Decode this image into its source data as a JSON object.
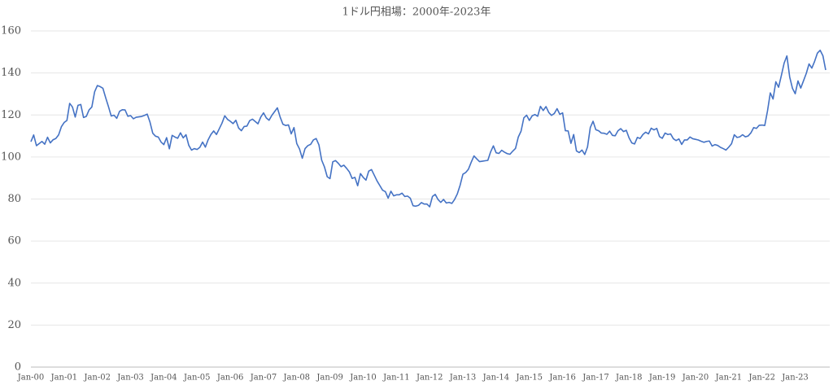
{
  "chart_data": {
    "type": "line",
    "title": "1ドル円相場：2000年-2023年",
    "color": "#4472c4",
    "grid": true,
    "ylim": [
      0,
      160
    ],
    "yticks": [
      0,
      20,
      40,
      60,
      80,
      100,
      120,
      140,
      160
    ],
    "categories": [
      "Jan-00",
      null,
      null,
      null,
      null,
      null,
      null,
      null,
      null,
      null,
      null,
      null,
      "Jan-01",
      null,
      null,
      null,
      null,
      null,
      null,
      null,
      null,
      null,
      null,
      null,
      "Jan-02",
      null,
      null,
      null,
      null,
      null,
      null,
      null,
      null,
      null,
      null,
      null,
      "Jan-03",
      null,
      null,
      null,
      null,
      null,
      null,
      null,
      null,
      null,
      null,
      null,
      "Jan-04",
      null,
      null,
      null,
      null,
      null,
      null,
      null,
      null,
      null,
      null,
      null,
      "Jan-05",
      null,
      null,
      null,
      null,
      null,
      null,
      null,
      null,
      null,
      null,
      null,
      "Jan-06",
      null,
      null,
      null,
      null,
      null,
      null,
      null,
      null,
      null,
      null,
      null,
      "Jan-07",
      null,
      null,
      null,
      null,
      null,
      null,
      null,
      null,
      null,
      null,
      null,
      "Jan-08",
      null,
      null,
      null,
      null,
      null,
      null,
      null,
      null,
      null,
      null,
      null,
      "Jan-09",
      null,
      null,
      null,
      null,
      null,
      null,
      null,
      null,
      null,
      null,
      null,
      "Jan-10",
      null,
      null,
      null,
      null,
      null,
      null,
      null,
      null,
      null,
      null,
      null,
      "Jan-11",
      null,
      null,
      null,
      null,
      null,
      null,
      null,
      null,
      null,
      null,
      null,
      "Jan-12",
      null,
      null,
      null,
      null,
      null,
      null,
      null,
      null,
      null,
      null,
      null,
      "Jan-13",
      null,
      null,
      null,
      null,
      null,
      null,
      null,
      null,
      null,
      null,
      null,
      "Jan-14",
      null,
      null,
      null,
      null,
      null,
      null,
      null,
      null,
      null,
      null,
      null,
      "Jan-15",
      null,
      null,
      null,
      null,
      null,
      null,
      null,
      null,
      null,
      null,
      null,
      "Jan-16",
      null,
      null,
      null,
      null,
      null,
      null,
      null,
      null,
      null,
      null,
      null,
      "Jan-17",
      null,
      null,
      null,
      null,
      null,
      null,
      null,
      null,
      null,
      null,
      null,
      "Jan-18",
      null,
      null,
      null,
      null,
      null,
      null,
      null,
      null,
      null,
      null,
      null,
      "Jan-19",
      null,
      null,
      null,
      null,
      null,
      null,
      null,
      null,
      null,
      null,
      null,
      "Jan-20",
      null,
      null,
      null,
      null,
      null,
      null,
      null,
      null,
      null,
      null,
      null,
      "Jan-21",
      null,
      null,
      null,
      null,
      null,
      null,
      null,
      null,
      null,
      null,
      null,
      "Jan-22",
      null,
      null,
      null,
      null,
      null,
      null,
      null,
      null,
      null,
      null,
      null,
      "Jan-23",
      null,
      null,
      null,
      null,
      null,
      null,
      null,
      null,
      null,
      null,
      null
    ],
    "values": [
      107.3,
      110.5,
      105.4,
      106.4,
      107.4,
      106.1,
      109.4,
      106.7,
      108.2,
      108.8,
      110.5,
      114.4,
      116.4,
      117.4,
      125.5,
      123.8,
      119.0,
      124.6,
      125.0,
      118.8,
      119.3,
      122.4,
      123.8,
      131.0,
      134.0,
      133.5,
      132.7,
      128.2,
      124.0,
      119.5,
      119.9,
      118.4,
      121.7,
      122.5,
      122.4,
      119.4,
      119.7,
      118.2,
      118.9,
      119.1,
      119.3,
      119.8,
      120.4,
      116.6,
      111.3,
      109.9,
      109.5,
      107.1,
      105.9,
      109.2,
      103.9,
      110.3,
      109.5,
      108.9,
      111.5,
      109.1,
      110.6,
      105.6,
      103.3,
      104.0,
      103.6,
      104.6,
      107.1,
      104.7,
      108.2,
      110.7,
      112.4,
      110.7,
      113.4,
      116.1,
      119.6,
      117.9,
      117.0,
      115.9,
      117.5,
      113.8,
      112.5,
      114.5,
      114.7,
      117.3,
      118.0,
      116.9,
      115.8,
      119.0,
      121.0,
      118.6,
      117.5,
      119.8,
      121.6,
      123.4,
      119.0,
      115.6,
      115.0,
      115.3,
      111.0,
      114.0,
      106.4,
      103.8,
      99.4,
      104.0,
      105.4,
      106.0,
      108.1,
      108.8,
      105.8,
      98.5,
      95.3,
      90.6,
      89.7,
      97.7,
      98.3,
      97.0,
      95.4,
      96.1,
      94.6,
      92.9,
      89.8,
      90.3,
      86.3,
      92.1,
      90.3,
      89.0,
      93.3,
      94.0,
      91.3,
      88.6,
      86.4,
      84.2,
      83.5,
      80.4,
      83.7,
      81.5,
      82.0,
      82.0,
      82.8,
      81.2,
      81.4,
      80.4,
      76.8,
      76.6,
      77.0,
      78.3,
      77.6,
      77.6,
      76.3,
      81.2,
      82.2,
      79.8,
      78.4,
      79.8,
      78.1,
      78.4,
      77.9,
      79.8,
      82.5,
      86.6,
      91.8,
      92.6,
      94.2,
      97.5,
      100.5,
      99.1,
      97.8,
      98.0,
      98.2,
      98.4,
      102.4,
      105.3,
      102.0,
      101.7,
      103.2,
      102.3,
      101.6,
      101.3,
      102.8,
      104.1,
      109.5,
      112.3,
      118.6,
      119.9,
      117.4,
      119.6,
      120.2,
      119.4,
      124.1,
      122.1,
      124.0,
      121.2,
      119.8,
      120.7,
      123.0,
      120.3,
      121.0,
      112.5,
      112.4,
      106.5,
      110.7,
      102.9,
      102.1,
      103.3,
      101.2,
      104.8,
      114.0,
      117.0,
      113.0,
      112.5,
      111.4,
      111.3,
      110.8,
      112.3,
      110.3,
      110.1,
      112.5,
      113.5,
      112.1,
      112.7,
      109.1,
      106.7,
      106.2,
      109.3,
      108.8,
      110.7,
      111.8,
      111.0,
      113.7,
      112.9,
      113.6,
      109.7,
      108.9,
      111.4,
      110.7,
      111.0,
      108.7,
      107.8,
      108.6,
      106.0,
      108.1,
      108.1,
      109.5,
      108.7,
      108.4,
      108.1,
      107.5,
      107.0,
      107.4,
      107.6,
      105.2,
      105.9,
      105.5,
      104.6,
      104.0,
      103.3,
      104.7,
      106.3,
      110.6,
      109.3,
      109.6,
      110.6,
      109.6,
      110.0,
      111.5,
      114.0,
      113.6,
      115.1,
      115.2,
      115.0,
      122.0,
      130.5,
      127.6,
      135.8,
      133.2,
      138.8,
      144.7,
      148.1,
      138.1,
      132.7,
      130.1,
      136.2,
      132.8,
      136.3,
      139.8,
      144.3,
      142.3,
      145.5,
      149.4,
      150.8,
      148.2,
      141.4
    ]
  }
}
